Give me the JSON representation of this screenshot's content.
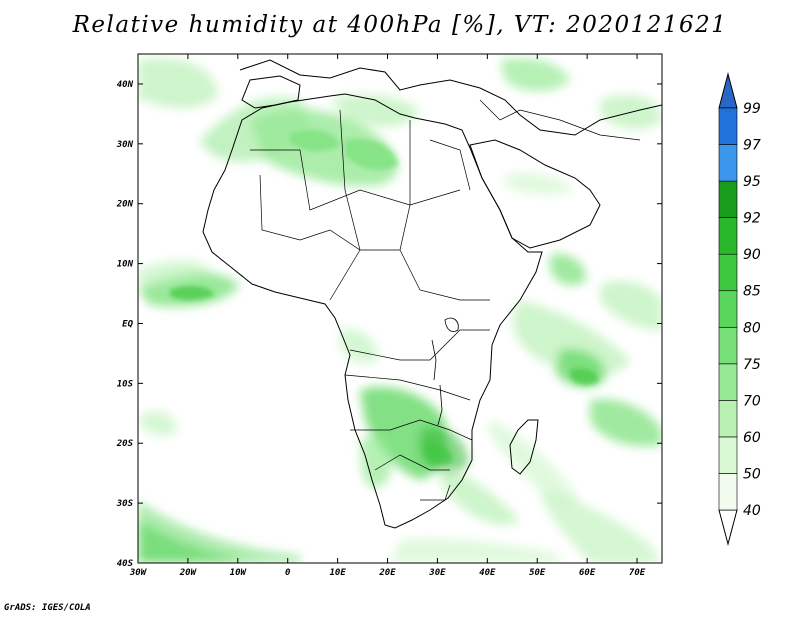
{
  "title": "Relative humidity at 400hPa [%], VT: 2020121621",
  "footer": "GrADS: IGES/COLA",
  "map": {
    "lon_range": [
      -30,
      75
    ],
    "lat_range": [
      -40,
      45
    ],
    "lon_ticks": [
      {
        "value": -30,
        "label": "30W"
      },
      {
        "value": -20,
        "label": "20W"
      },
      {
        "value": -10,
        "label": "10W"
      },
      {
        "value": 0,
        "label": "0"
      },
      {
        "value": 10,
        "label": "10E"
      },
      {
        "value": 20,
        "label": "20E"
      },
      {
        "value": 30,
        "label": "30E"
      },
      {
        "value": 40,
        "label": "40E"
      },
      {
        "value": 50,
        "label": "50E"
      },
      {
        "value": 60,
        "label": "60E"
      },
      {
        "value": 70,
        "label": "70E"
      }
    ],
    "lat_ticks": [
      {
        "value": 40,
        "label": "40N"
      },
      {
        "value": 30,
        "label": "30N"
      },
      {
        "value": 20,
        "label": "20N"
      },
      {
        "value": 10,
        "label": "10N"
      },
      {
        "value": 0,
        "label": "EQ"
      },
      {
        "value": -10,
        "label": "10S"
      },
      {
        "value": -20,
        "label": "20S"
      },
      {
        "value": -30,
        "label": "30S"
      },
      {
        "value": -40,
        "label": "40S"
      }
    ]
  },
  "colorbar": {
    "levels": [
      "40",
      "50",
      "60",
      "70",
      "75",
      "80",
      "85",
      "90",
      "92",
      "95",
      "97",
      "99"
    ],
    "colors": [
      "#f1fcef",
      "#d8f8d4",
      "#b9f1b5",
      "#97e996",
      "#78e078",
      "#5ad65c",
      "#3ec840",
      "#29b72c",
      "#179c1c",
      "#3b96ec",
      "#2073da"
    ],
    "top_color": "#2a66c8",
    "bottom_color": "#ffffff"
  }
}
